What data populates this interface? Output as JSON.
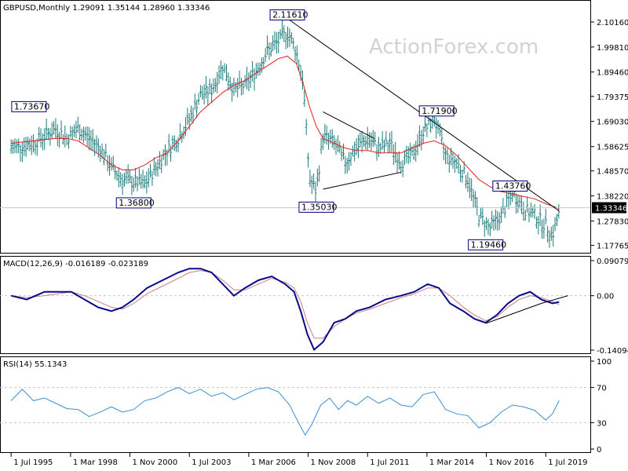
{
  "header": {
    "symbol_line": "GBPUSD,Monthly  1.29091 1.35144 1.28960 1.33346",
    "watermark": "ActionForex.com"
  },
  "colors": {
    "bars": "#1a7a7a",
    "ma": "#e02020",
    "macd": "#0a0a8a",
    "signal": "#c88080",
    "rsi": "#3b8fd6",
    "trendline": "#000000",
    "gridline": "#c8c8c8",
    "label_border": "#000080"
  },
  "chart_data": [
    {
      "type": "candlestick",
      "title": "GBPUSD,Monthly  1.29091 1.35144 1.28960 1.33346",
      "ylim": [
        1.16,
        2.16
      ],
      "y_ticks": [
        "2.10160",
        "1.99810",
        "1.89460",
        "1.79375",
        "1.69030",
        "1.58625",
        "1.48570",
        "1.38220",
        "1.27830",
        "1.17765"
      ],
      "current_price": "1.33346",
      "x": [
        1995.5,
        1996.5,
        1997.5,
        1998.0,
        1998.5,
        1999.0,
        1999.5,
        2000.0,
        2000.5,
        2001.0,
        2001.5,
        2002.0,
        2002.5,
        2003.0,
        2003.5,
        2004.0,
        2004.5,
        2005.0,
        2005.5,
        2006.0,
        2006.5,
        2007.0,
        2007.5,
        2007.9,
        2008.3,
        2008.6,
        2008.9,
        2009.2,
        2009.5,
        2010.0,
        2010.5,
        2011.0,
        2011.5,
        2012.0,
        2012.5,
        2013.0,
        2013.5,
        2014.0,
        2014.5,
        2015.0,
        2015.5,
        2016.0,
        2016.5,
        2017.0,
        2017.5,
        2018.0,
        2018.5,
        2019.0,
        2019.5,
        2019.8,
        2020.1
      ],
      "close": [
        1.58,
        1.6,
        1.66,
        1.62,
        1.66,
        1.62,
        1.58,
        1.5,
        1.45,
        1.44,
        1.43,
        1.5,
        1.57,
        1.62,
        1.7,
        1.8,
        1.82,
        1.92,
        1.82,
        1.84,
        1.9,
        1.98,
        2.02,
        2.06,
        1.98,
        1.86,
        1.45,
        1.4,
        1.63,
        1.6,
        1.52,
        1.58,
        1.62,
        1.58,
        1.6,
        1.52,
        1.55,
        1.65,
        1.7,
        1.55,
        1.52,
        1.45,
        1.3,
        1.25,
        1.3,
        1.4,
        1.33,
        1.3,
        1.26,
        1.22,
        1.31
      ],
      "moving_average": [
        1.6,
        1.61,
        1.62,
        1.62,
        1.61,
        1.58,
        1.55,
        1.51,
        1.49,
        1.49,
        1.51,
        1.54,
        1.56,
        1.61,
        1.67,
        1.73,
        1.77,
        1.81,
        1.84,
        1.86,
        1.89,
        1.92,
        1.95,
        1.96,
        1.93,
        1.85,
        1.75,
        1.67,
        1.62,
        1.6,
        1.58,
        1.57,
        1.57,
        1.56,
        1.56,
        1.56,
        1.58,
        1.6,
        1.61,
        1.59,
        1.55,
        1.5,
        1.45,
        1.42,
        1.4,
        1.39,
        1.38,
        1.37,
        1.35,
        1.34,
        1.33
      ],
      "annotations": [
        {
          "label": "2.11610",
          "x": 2007.9,
          "y": 2.1161
        },
        {
          "label": "1.73670",
          "x": 1996.3,
          "y": 1.7367
        },
        {
          "label": "1.36800",
          "x": 2001.0,
          "y": 1.368
        },
        {
          "label": "1.35030",
          "x": 2009.2,
          "y": 1.3503
        },
        {
          "label": "1.71900",
          "x": 2014.6,
          "y": 1.719
        },
        {
          "label": "1.43760",
          "x": 2017.9,
          "y": 1.4376
        },
        {
          "label": "1.19460",
          "x": 2016.8,
          "y": 1.1946
        }
      ],
      "trendlines": [
        {
          "from": [
            2007.9,
            2.1161
          ],
          "to": [
            2020.1,
            1.32
          ]
        },
        {
          "from": [
            2009.5,
            1.73
          ],
          "to": [
            2011.8,
            1.62
          ]
        },
        {
          "from": [
            2009.5,
            1.41
          ],
          "to": [
            2013.0,
            1.48
          ]
        }
      ]
    },
    {
      "type": "line",
      "title": "MACD(12,26,9) -0.016189 -0.023189",
      "ylim": [
        -0.14094,
        0.090798
      ],
      "y_ticks": [
        "0.090798",
        "0.00",
        "-0.14094"
      ],
      "x": [
        1995.5,
        1996.2,
        1997.0,
        1997.6,
        1998.2,
        1998.8,
        1999.4,
        2000.0,
        2000.5,
        2001.0,
        2001.6,
        2002.3,
        2003.0,
        2003.5,
        2004.0,
        2004.5,
        2005.0,
        2005.5,
        2006.0,
        2006.6,
        2007.2,
        2007.8,
        2008.2,
        2008.5,
        2008.8,
        2009.1,
        2009.5,
        2010.0,
        2010.5,
        2011.0,
        2011.6,
        2012.3,
        2013.0,
        2013.6,
        2014.2,
        2014.7,
        2015.2,
        2015.8,
        2016.3,
        2016.8,
        2017.3,
        2017.8,
        2018.3,
        2018.8,
        2019.3,
        2019.8,
        2020.1
      ],
      "series": [
        {
          "name": "MACD",
          "values": [
            0.0,
            -0.01,
            0.01,
            0.01,
            0.01,
            -0.01,
            -0.03,
            -0.04,
            -0.03,
            -0.01,
            0.02,
            0.04,
            0.06,
            0.07,
            0.07,
            0.06,
            0.03,
            0.0,
            0.02,
            0.04,
            0.05,
            0.03,
            0.01,
            -0.04,
            -0.1,
            -0.14,
            -0.12,
            -0.07,
            -0.06,
            -0.04,
            -0.03,
            -0.01,
            0.0,
            0.01,
            0.03,
            0.02,
            -0.02,
            -0.04,
            -0.06,
            -0.07,
            -0.05,
            -0.02,
            0.0,
            0.01,
            -0.01,
            -0.02,
            -0.016189
          ]
        },
        {
          "name": "Signal",
          "values": [
            0.0,
            -0.005,
            0.0,
            0.005,
            0.01,
            0.0,
            -0.015,
            -0.03,
            -0.035,
            -0.02,
            0.005,
            0.025,
            0.045,
            0.06,
            0.065,
            0.06,
            0.04,
            0.015,
            0.015,
            0.03,
            0.045,
            0.035,
            0.02,
            -0.015,
            -0.07,
            -0.11,
            -0.11,
            -0.08,
            -0.06,
            -0.045,
            -0.035,
            -0.02,
            -0.005,
            0.005,
            0.02,
            0.02,
            0.0,
            -0.03,
            -0.05,
            -0.065,
            -0.055,
            -0.03,
            -0.01,
            0.0,
            -0.005,
            -0.015,
            -0.023189
          ]
        }
      ],
      "trendlines": [
        {
          "from": [
            2016.8,
            -0.072
          ],
          "to": [
            2019.3,
            -0.02
          ]
        },
        {
          "from": [
            2019.3,
            -0.02
          ],
          "to": [
            2020.5,
            0.0
          ]
        }
      ]
    },
    {
      "type": "line",
      "title": "RSI(14) 55.1343",
      "ylim": [
        0,
        100
      ],
      "y_ticks": [
        "100",
        "70",
        "30",
        "0"
      ],
      "x": [
        1995.5,
        1996.0,
        1996.5,
        1997.0,
        1997.5,
        1998.0,
        1998.5,
        1999.0,
        1999.5,
        2000.0,
        2000.5,
        2001.0,
        2001.5,
        2002.0,
        2002.5,
        2003.0,
        2003.5,
        2004.0,
        2004.5,
        2005.0,
        2005.5,
        2006.0,
        2006.5,
        2007.0,
        2007.5,
        2008.0,
        2008.4,
        2008.7,
        2009.0,
        2009.4,
        2009.8,
        2010.2,
        2010.6,
        2011.0,
        2011.5,
        2012.0,
        2012.5,
        2013.0,
        2013.5,
        2014.0,
        2014.5,
        2015.0,
        2015.5,
        2016.0,
        2016.5,
        2017.0,
        2017.5,
        2018.0,
        2018.5,
        2019.0,
        2019.5,
        2019.8,
        2020.1
      ],
      "series": [
        {
          "name": "RSI",
          "values": [
            55,
            68,
            55,
            58,
            52,
            46,
            45,
            37,
            42,
            48,
            42,
            45,
            55,
            58,
            65,
            70,
            63,
            68,
            60,
            64,
            56,
            62,
            68,
            70,
            65,
            50,
            30,
            16,
            28,
            50,
            58,
            45,
            55,
            50,
            60,
            52,
            58,
            50,
            48,
            62,
            65,
            45,
            40,
            38,
            24,
            30,
            42,
            50,
            48,
            44,
            33,
            40,
            55.1343
          ]
        }
      ]
    }
  ],
  "x_axis": {
    "ticks": [
      "1 Jul 1995",
      "1 Mar 1998",
      "1 Nov 2000",
      "1 Jul 2003",
      "1 Mar 2006",
      "1 Nov 2008",
      "1 Jul 2011",
      "1 Mar 2014",
      "1 Nov 2016",
      "1 Jul 2019"
    ],
    "tick_years": [
      1995.5,
      1998.167,
      2000.833,
      2003.5,
      2006.167,
      2008.833,
      2011.5,
      2014.167,
      2016.833,
      2019.5
    ]
  }
}
